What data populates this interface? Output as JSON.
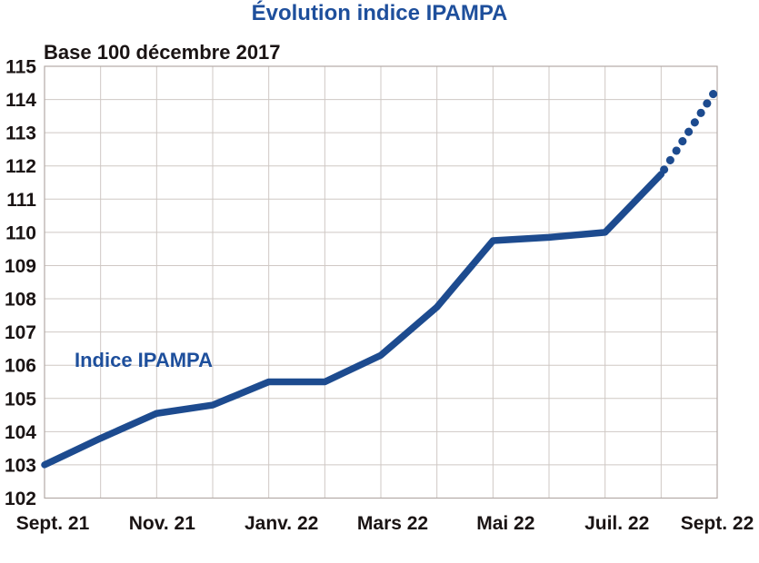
{
  "chart_data": {
    "type": "line",
    "title": "Évolution indice IPAMPA",
    "subtitle": "Base 100 décembre 2017",
    "series_label": "Indice IPAMPA",
    "x_tick_labels": [
      "Sept. 21",
      "Nov. 21",
      "Janv. 22",
      "Mars 22",
      "Mai 22",
      "Juil. 22",
      "Sept. 22"
    ],
    "x_tick_positions": [
      0,
      2,
      4,
      6,
      8,
      10,
      12
    ],
    "x_point_count": 13,
    "values": [
      103.0,
      103.8,
      104.55,
      104.8,
      105.5,
      105.5,
      106.3,
      107.75,
      109.75,
      109.85,
      110.0,
      111.75,
      114.35
    ],
    "forecast_from_index": 11,
    "forecast_style": "dotted",
    "y_tick_labels": [
      "102",
      "103",
      "104",
      "105",
      "106",
      "107",
      "108",
      "109",
      "110",
      "111",
      "112",
      "113",
      "114",
      "115"
    ],
    "ylim": [
      102,
      115
    ],
    "grid": true,
    "legend_position": "inside-left",
    "colors": {
      "line": "#1d4b8f",
      "title": "#1e4f9c",
      "series_label": "#1e4f9c",
      "axis_text": "#1a1414",
      "grid": "#cfc8c4",
      "border": "#b3aba7",
      "background": "#ffffff"
    }
  }
}
